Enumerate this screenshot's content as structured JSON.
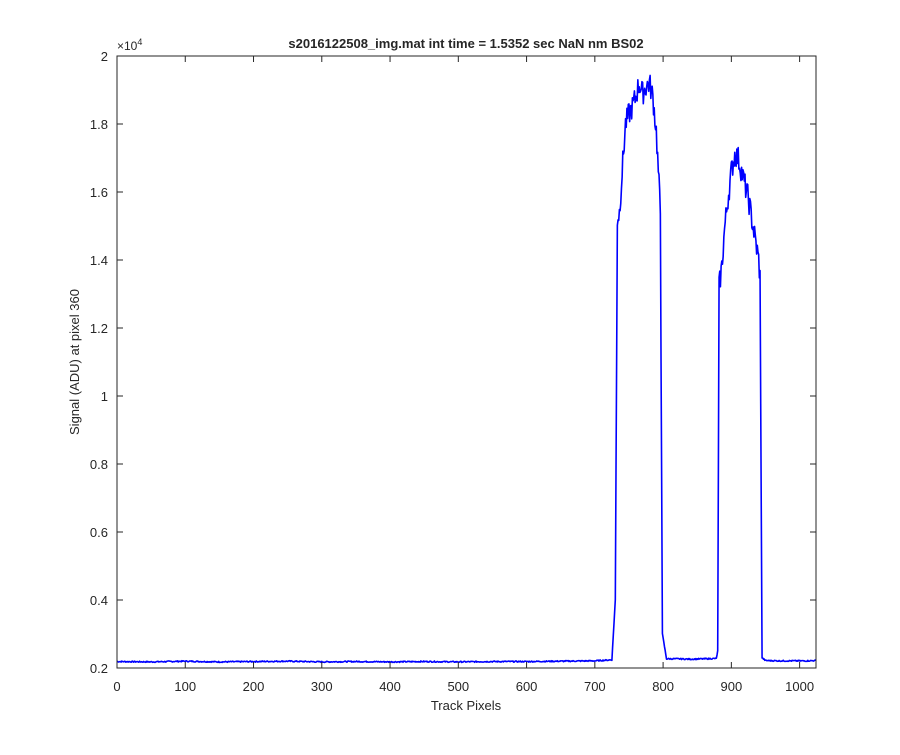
{
  "chart_data": {
    "type": "line",
    "title": "s2016122508_img.mat int time = 1.5352 sec  NaN nm BS02",
    "xlabel": "Track Pixels",
    "ylabel": "Signal (ADU) at pixel 360",
    "y_exponent_label": "×10",
    "y_exponent_power": "4",
    "xlim": [
      0,
      1024
    ],
    "ylim": [
      0.2,
      2.0
    ],
    "y_scale_factor": 10000,
    "x_ticks": [
      0,
      100,
      200,
      300,
      400,
      500,
      600,
      700,
      800,
      900,
      1000
    ],
    "x_tick_labels": [
      "0",
      "100",
      "200",
      "300",
      "400",
      "500",
      "600",
      "700",
      "800",
      "900",
      "1000"
    ],
    "y_ticks": [
      0.2,
      0.4,
      0.6,
      0.8,
      1.0,
      1.2,
      1.4,
      1.6,
      1.8,
      2.0
    ],
    "y_tick_labels": [
      "0.2",
      "0.4",
      "0.6",
      "0.8",
      "1",
      "1.2",
      "1.4",
      "1.6",
      "1.8",
      "2"
    ],
    "grid": false,
    "series": [
      {
        "color": "#0000ff",
        "x": [
          0,
          50,
          100,
          150,
          200,
          250,
          300,
          350,
          400,
          450,
          500,
          550,
          600,
          650,
          700,
          725,
          730,
          733,
          736,
          740,
          745,
          750,
          755,
          760,
          765,
          770,
          775,
          780,
          785,
          790,
          796,
          799,
          805,
          820,
          840,
          860,
          878,
          880,
          882,
          886,
          890,
          895,
          900,
          905,
          910,
          915,
          920,
          925,
          930,
          935,
          940,
          942,
          945,
          950,
          970,
          990,
          1010,
          1024
        ],
        "y": [
          0.219,
          0.218,
          0.22,
          0.218,
          0.219,
          0.22,
          0.218,
          0.219,
          0.218,
          0.219,
          0.218,
          0.219,
          0.219,
          0.22,
          0.221,
          0.224,
          0.4,
          1.52,
          1.54,
          1.66,
          1.8,
          1.83,
          1.85,
          1.88,
          1.92,
          1.89,
          1.91,
          1.92,
          1.88,
          1.78,
          1.54,
          0.3,
          0.227,
          0.227,
          0.226,
          0.227,
          0.228,
          0.25,
          1.32,
          1.38,
          1.49,
          1.58,
          1.66,
          1.71,
          1.7,
          1.66,
          1.62,
          1.58,
          1.52,
          1.46,
          1.4,
          1.35,
          0.23,
          0.222,
          0.221,
          0.221,
          0.221,
          0.222
        ]
      }
    ]
  }
}
